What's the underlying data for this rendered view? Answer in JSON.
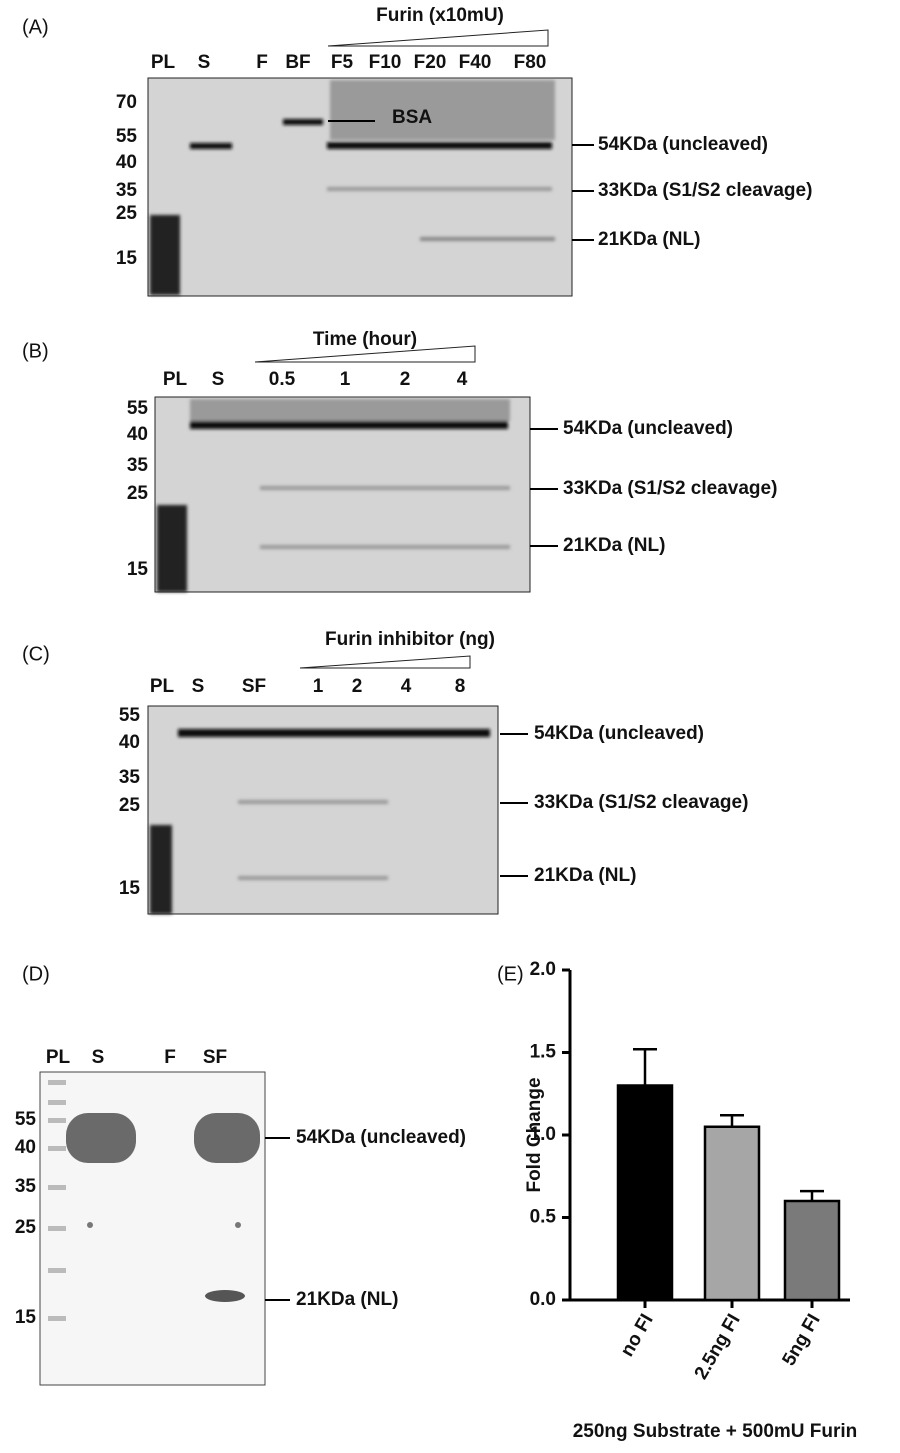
{
  "panels": [
    {
      "label": "(A)",
      "header": "Furin (x10mU)",
      "lanes": [
        "PL",
        "S",
        "F",
        "BF",
        "F5",
        "F10",
        "F20",
        "F40",
        "F80"
      ],
      "markers": [
        "70",
        "55",
        "40",
        "35",
        "25",
        "15"
      ],
      "bands": [
        "54KDa (uncleaved)",
        "33KDa (S1/S2 cleavage)",
        "21KDa (NL)"
      ],
      "annotation": "BSA"
    },
    {
      "label": "(B)",
      "header": "Time (hour)",
      "lanes": [
        "PL",
        "S",
        "0.5",
        "1",
        "2",
        "4"
      ],
      "markers": [
        "55",
        "40",
        "35",
        "25",
        "15"
      ],
      "bands": [
        "54KDa (uncleaved)",
        "33KDa (S1/S2 cleavage)",
        "21KDa (NL)"
      ]
    },
    {
      "label": "(C)",
      "header": "Furin inhibitor  (ng)",
      "lanes": [
        "PL",
        "S",
        "SF",
        "1",
        "2",
        "4",
        "8"
      ],
      "markers": [
        "55",
        "40",
        "35",
        "25",
        "15"
      ],
      "bands": [
        "54KDa (uncleaved)",
        "33KDa (S1/S2 cleavage)",
        "21KDa (NL)"
      ]
    },
    {
      "label": "(D)",
      "lanes": [
        "PL",
        "S",
        "F",
        "SF"
      ],
      "markers": [
        "55",
        "40",
        "35",
        "25",
        "15"
      ],
      "bands": [
        "54KDa (uncleaved)",
        "21KDa (NL)"
      ]
    }
  ],
  "chart_data": {
    "type": "bar",
    "label": "(E)",
    "categories": [
      "no FI",
      "2.5ng FI",
      "5ng FI"
    ],
    "values": [
      1.3,
      1.05,
      0.6
    ],
    "errors": [
      0.22,
      0.07,
      0.06
    ],
    "colors": [
      "#000000",
      "#a6a6a6",
      "#7a7a7a"
    ],
    "ylim": [
      0,
      2
    ],
    "yticks": [
      {
        "value": 0,
        "label": "0.0"
      },
      {
        "value": 0.5,
        "label": "0.5"
      },
      {
        "value": 1,
        "label": "1.0"
      },
      {
        "value": 1.5,
        "label": "1.5"
      },
      {
        "value": 2,
        "label": "2.0"
      }
    ],
    "ylabel": "Fold Change",
    "xlabel": "250ng Substrate + 500mU Furin"
  }
}
